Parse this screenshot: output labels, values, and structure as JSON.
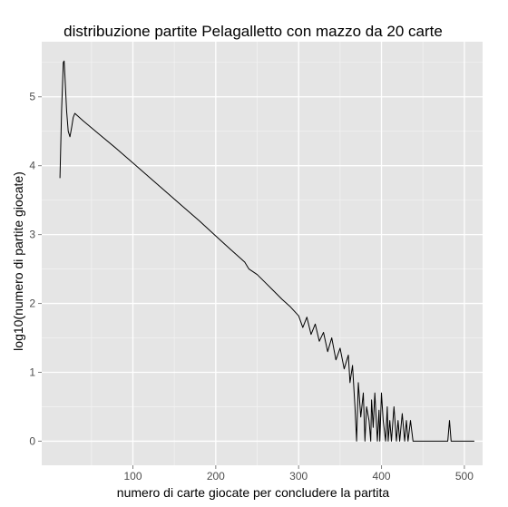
{
  "chart_data": {
    "type": "line",
    "title": "distribuzione partite Pelagalletto con mazzo da 20 carte",
    "xlabel": "numero di carte giocate per concludere la partita",
    "ylabel": "log10(numero di partite giocate)",
    "xlim": [
      -10,
      522
    ],
    "ylim": [
      -0.35,
      5.8
    ],
    "x_ticks": [
      100,
      200,
      300,
      400,
      500
    ],
    "y_ticks": [
      0,
      1,
      2,
      3,
      4,
      5
    ],
    "grid": true,
    "legend": "none",
    "colors": {
      "panel": "#e5e5e5",
      "grid_major": "#ffffff",
      "grid_minor": "#f2f2f2",
      "line": "#000000",
      "tick_text": "#4d4d4d"
    },
    "series": [
      {
        "x": [
          12,
          14,
          16,
          17,
          18,
          20,
          22,
          24,
          26,
          28,
          30,
          40,
          60,
          80,
          100,
          120,
          140,
          160,
          180,
          200,
          220,
          235,
          240,
          250,
          260,
          270,
          280,
          290,
          300,
          305,
          310,
          315,
          320,
          325,
          330,
          335,
          340,
          345,
          350,
          355,
          360,
          362,
          365,
          368,
          370,
          372,
          375,
          378,
          380,
          382,
          385,
          387,
          388,
          390,
          392,
          395,
          397,
          398,
          400,
          402,
          405,
          407,
          408,
          410,
          412,
          415,
          418,
          420,
          422,
          425,
          428,
          430,
          432,
          435,
          438,
          440,
          450,
          460,
          470,
          480,
          482,
          484,
          490,
          500,
          512
        ],
        "values": [
          3.82,
          4.8,
          5.5,
          5.52,
          5.3,
          4.8,
          4.5,
          4.42,
          4.55,
          4.7,
          4.76,
          4.65,
          4.45,
          4.25,
          4.04,
          3.83,
          3.62,
          3.41,
          3.2,
          2.98,
          2.76,
          2.6,
          2.5,
          2.42,
          2.3,
          2.18,
          2.06,
          1.95,
          1.82,
          1.65,
          1.8,
          1.55,
          1.7,
          1.45,
          1.58,
          1.3,
          1.5,
          1.18,
          1.35,
          1.05,
          1.25,
          0.85,
          1.1,
          0.5,
          0.0,
          0.85,
          0.35,
          0.7,
          0.0,
          0.5,
          0.3,
          0.0,
          0.6,
          0.2,
          0.7,
          0.0,
          0.45,
          0.0,
          0.7,
          0.3,
          0.0,
          0.5,
          0.0,
          0.3,
          0.0,
          0.5,
          0.0,
          0.3,
          0.0,
          0.4,
          0.0,
          0.3,
          0.0,
          0.3,
          0.0,
          0.0,
          0.0,
          0.0,
          0.0,
          0.0,
          0.3,
          0.0,
          0.0,
          0.0,
          0.0
        ]
      }
    ]
  }
}
